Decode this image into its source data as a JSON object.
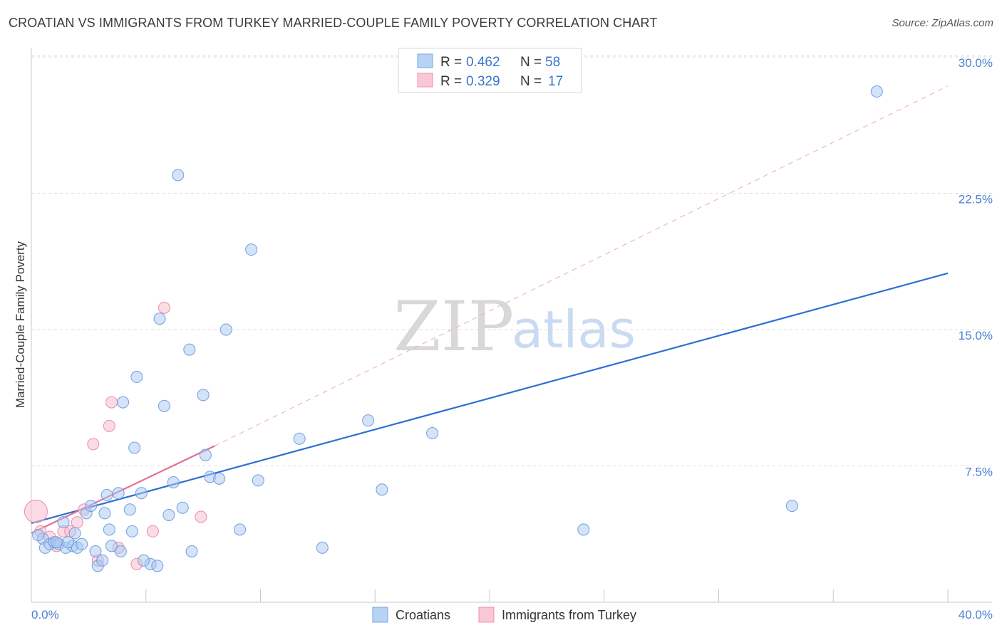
{
  "header": {
    "title": "CROATIAN VS IMMIGRANTS FROM TURKEY MARRIED-COUPLE FAMILY POVERTY CORRELATION CHART",
    "source": "Source: ZipAtlas.com"
  },
  "watermark": {
    "zip": "ZIP",
    "atlas": "atlas"
  },
  "stats_legend": {
    "rows": [
      {
        "r_label": "R =",
        "r_value": "0.462",
        "n_label": "N =",
        "n_value": "58"
      },
      {
        "r_label": "R =",
        "r_value": "0.329",
        "n_label": "N =",
        "n_value": "17"
      }
    ]
  },
  "chart_data": {
    "type": "scatter",
    "title": "CROATIAN VS IMMIGRANTS FROM TURKEY MARRIED-COUPLE FAMILY POVERTY CORRELATION CHART",
    "xlabel": "",
    "ylabel": "Married-Couple Family Poverty",
    "xlim": [
      0,
      40
    ],
    "ylim": [
      0,
      30
    ],
    "x_tick_labels": [
      "0.0%",
      "40.0%"
    ],
    "y_ticks": [
      7.5,
      15.0,
      22.5,
      30.0
    ],
    "y_tick_labels": [
      "7.5%",
      "15.0%",
      "22.5%",
      "30.0%"
    ],
    "grid": true,
    "legend_position": "bottom-center",
    "colors": {
      "croatians": "#a9c8f2",
      "croatians_stroke": "#6f9fe0",
      "turkey": "#f7bfd0",
      "turkey_stroke": "#ee8aa8",
      "trend_blue": "#2d6fd2",
      "trend_pink": "#e36d96"
    },
    "series": [
      {
        "name": "Croatians",
        "r": 0.462,
        "n": 58,
        "trend": {
          "x": [
            0,
            40
          ],
          "y": [
            4.35,
            18.1
          ]
        },
        "points": [
          [
            0.5,
            3.5
          ],
          [
            0.6,
            3.0
          ],
          [
            0.8,
            3.2
          ],
          [
            1.0,
            3.3
          ],
          [
            1.2,
            3.2
          ],
          [
            1.5,
            3.0
          ],
          [
            1.8,
            3.1
          ],
          [
            2.0,
            3.0
          ],
          [
            1.4,
            4.4
          ],
          [
            1.9,
            3.8
          ],
          [
            2.4,
            4.9
          ],
          [
            2.8,
            2.8
          ],
          [
            2.9,
            2.0
          ],
          [
            3.1,
            2.3
          ],
          [
            3.2,
            4.9
          ],
          [
            3.4,
            4.0
          ],
          [
            3.3,
            5.9
          ],
          [
            3.8,
            6.0
          ],
          [
            3.9,
            2.8
          ],
          [
            4.0,
            11.0
          ],
          [
            4.3,
            5.1
          ],
          [
            4.4,
            3.9
          ],
          [
            4.5,
            8.5
          ],
          [
            4.8,
            6.0
          ],
          [
            4.6,
            12.4
          ],
          [
            5.2,
            2.1
          ],
          [
            5.6,
            15.6
          ],
          [
            5.8,
            10.8
          ],
          [
            6.0,
            4.8
          ],
          [
            6.2,
            6.6
          ],
          [
            6.4,
            23.5
          ],
          [
            6.6,
            5.2
          ],
          [
            6.9,
            13.9
          ],
          [
            7.0,
            2.8
          ],
          [
            7.5,
            11.4
          ],
          [
            7.6,
            8.1
          ],
          [
            7.8,
            6.9
          ],
          [
            8.2,
            6.8
          ],
          [
            8.5,
            15.0
          ],
          [
            9.1,
            4.0
          ],
          [
            9.6,
            19.4
          ],
          [
            9.9,
            6.7
          ],
          [
            11.7,
            9.0
          ],
          [
            12.7,
            3.0
          ],
          [
            14.7,
            10.0
          ],
          [
            15.3,
            6.2
          ],
          [
            17.5,
            9.3
          ],
          [
            24.1,
            4.0
          ],
          [
            33.2,
            5.3
          ],
          [
            36.9,
            28.1
          ],
          [
            0.3,
            3.7
          ],
          [
            1.1,
            3.3
          ],
          [
            1.6,
            3.3
          ],
          [
            2.6,
            5.3
          ],
          [
            3.5,
            3.1
          ],
          [
            4.9,
            2.3
          ],
          [
            5.5,
            2.0
          ],
          [
            2.2,
            3.2
          ]
        ]
      },
      {
        "name": "Immigrants from Turkey",
        "r": 0.329,
        "n": 17,
        "trend": {
          "x": [
            0,
            8.0
          ],
          "y": [
            3.8,
            8.6
          ],
          "dashed_extension": {
            "x": [
              8.0,
              40
            ],
            "y": [
              8.6,
              28.4
            ]
          }
        },
        "points": [
          [
            0.4,
            3.9
          ],
          [
            0.8,
            3.6
          ],
          [
            1.1,
            3.1
          ],
          [
            1.4,
            3.9
          ],
          [
            1.7,
            3.9
          ],
          [
            2.0,
            4.4
          ],
          [
            2.3,
            5.1
          ],
          [
            2.7,
            8.7
          ],
          [
            2.9,
            2.3
          ],
          [
            3.4,
            9.7
          ],
          [
            3.5,
            11.0
          ],
          [
            3.8,
            3.0
          ],
          [
            4.6,
            2.1
          ],
          [
            5.3,
            3.9
          ],
          [
            5.8,
            16.2
          ],
          [
            7.4,
            4.7
          ],
          [
            0.2,
            5.0
          ]
        ]
      }
    ]
  },
  "bottom_legend": {
    "items": [
      {
        "label": "Croatians"
      },
      {
        "label": "Immigrants from Turkey"
      }
    ]
  }
}
